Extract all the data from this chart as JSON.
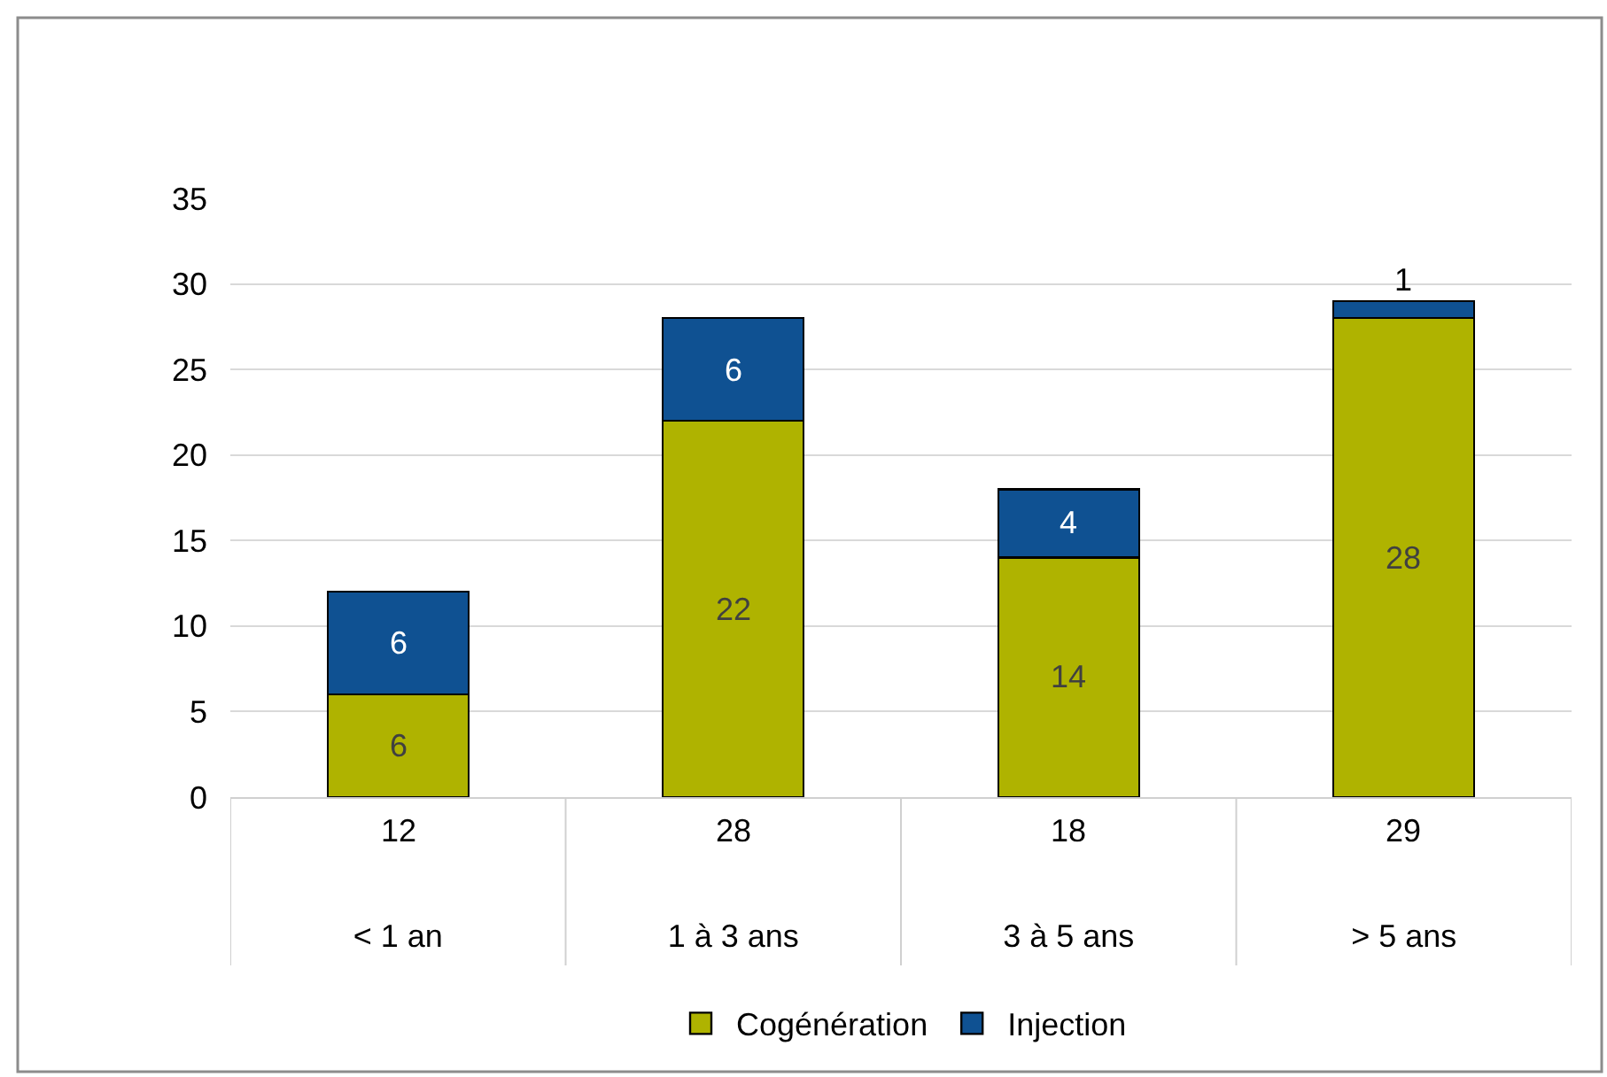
{
  "chart_data": {
    "type": "bar",
    "stacked": true,
    "categories": [
      "< 1 an",
      "1 à 3 ans",
      "3 à 5 ans",
      "> 5 ans"
    ],
    "series": [
      {
        "name": "Cogénération",
        "color": "#afb300",
        "values": [
          6,
          22,
          14,
          28
        ]
      },
      {
        "name": "Injection",
        "color": "#0f5192",
        "values": [
          6,
          6,
          4,
          1
        ]
      }
    ],
    "ylim": [
      0,
      35
    ],
    "yticks": [
      0,
      5,
      10,
      15,
      20,
      25,
      30,
      35
    ],
    "grid": "y",
    "legend": "bottom",
    "data_labels": true,
    "totals": [
      "12",
      "28",
      "18",
      "29"
    ]
  }
}
